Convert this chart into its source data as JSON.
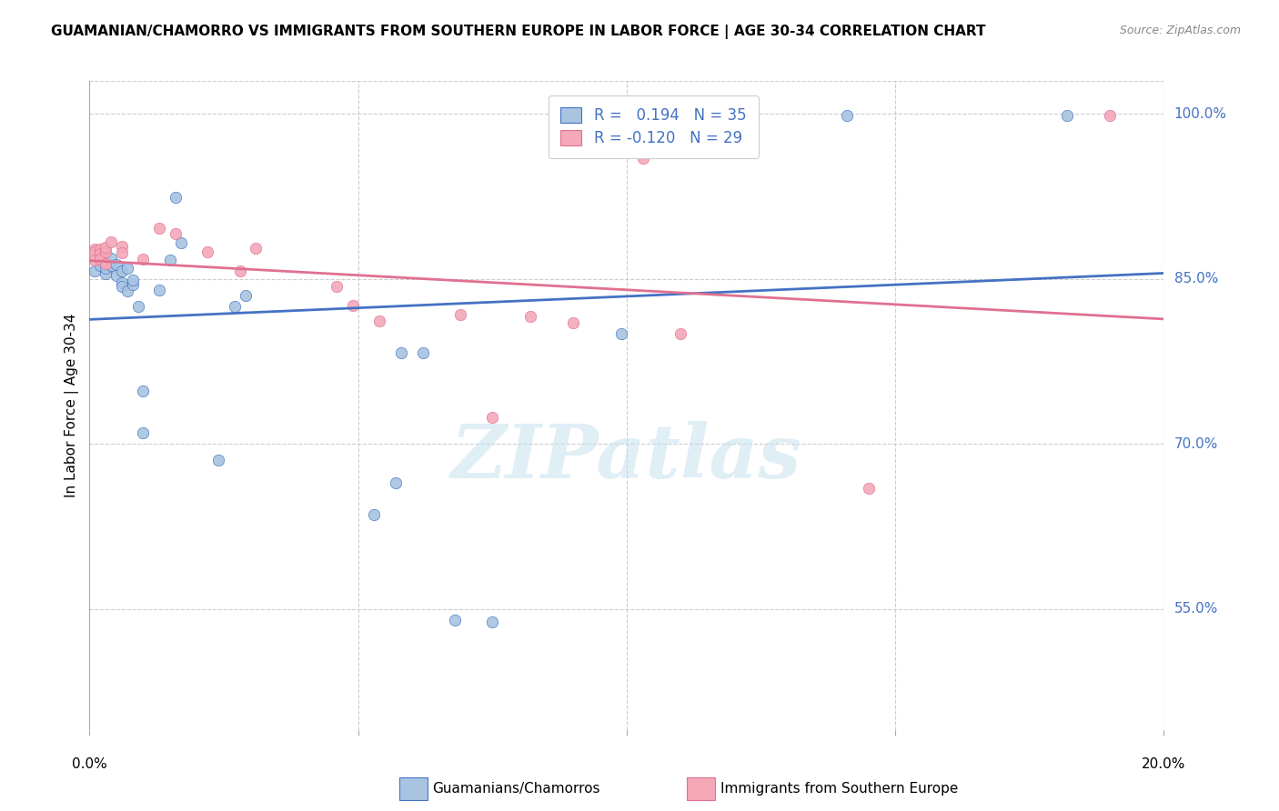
{
  "title": "GUAMANIAN/CHAMORRO VS IMMIGRANTS FROM SOUTHERN EUROPE IN LABOR FORCE | AGE 30-34 CORRELATION CHART",
  "source": "Source: ZipAtlas.com",
  "ylabel": "In Labor Force | Age 30-34",
  "xlim": [
    0.0,
    0.2
  ],
  "ylim": [
    0.44,
    1.03
  ],
  "yticks": [
    0.55,
    0.7,
    0.85,
    1.0
  ],
  "ytick_labels": [
    "55.0%",
    "70.0%",
    "85.0%",
    "100.0%"
  ],
  "blue_r": "0.194",
  "blue_n": "35",
  "pink_r": "-0.120",
  "pink_n": "29",
  "blue_color": "#a8c4e0",
  "pink_color": "#f4a8b8",
  "blue_line_color": "#4472c4",
  "pink_line_color": "#e07090",
  "watermark_text": "ZIPatlas",
  "blue_scatter_x": [
    0.001,
    0.002,
    0.003,
    0.003,
    0.004,
    0.004,
    0.005,
    0.005,
    0.006,
    0.006,
    0.006,
    0.007,
    0.007,
    0.008,
    0.008,
    0.009,
    0.01,
    0.01,
    0.013,
    0.015,
    0.016,
    0.017,
    0.024,
    0.027,
    0.029,
    0.053,
    0.057,
    0.058,
    0.062,
    0.068,
    0.075,
    0.099,
    0.108,
    0.141,
    0.182
  ],
  "blue_scatter_y": [
    0.857,
    0.862,
    0.855,
    0.86,
    0.862,
    0.869,
    0.863,
    0.853,
    0.857,
    0.847,
    0.843,
    0.86,
    0.839,
    0.845,
    0.849,
    0.825,
    0.748,
    0.71,
    0.84,
    0.867,
    0.924,
    0.883,
    0.685,
    0.825,
    0.835,
    0.636,
    0.665,
    0.783,
    0.783,
    0.54,
    0.538,
    0.8,
    0.999,
    0.999,
    0.999
  ],
  "pink_scatter_x": [
    0.001,
    0.001,
    0.001,
    0.002,
    0.002,
    0.002,
    0.003,
    0.003,
    0.003,
    0.004,
    0.006,
    0.006,
    0.01,
    0.013,
    0.016,
    0.022,
    0.028,
    0.031,
    0.046,
    0.049,
    0.054,
    0.069,
    0.075,
    0.082,
    0.09,
    0.103,
    0.11,
    0.145,
    0.19
  ],
  "pink_scatter_y": [
    0.877,
    0.875,
    0.867,
    0.877,
    0.873,
    0.868,
    0.875,
    0.879,
    0.864,
    0.884,
    0.88,
    0.874,
    0.868,
    0.896,
    0.891,
    0.875,
    0.857,
    0.878,
    0.843,
    0.826,
    0.812,
    0.818,
    0.724,
    0.816,
    0.81,
    0.96,
    0.8,
    0.66,
    0.999
  ],
  "legend_label_blue": "Guamanians/Chamorros",
  "legend_label_pink": "Immigrants from Southern Europe",
  "title_fontsize": 11,
  "source_fontsize": 9,
  "axis_label_fontsize": 11,
  "tick_label_fontsize": 11,
  "legend_fontsize": 12,
  "scatter_size": 80,
  "line_width": 2.0
}
